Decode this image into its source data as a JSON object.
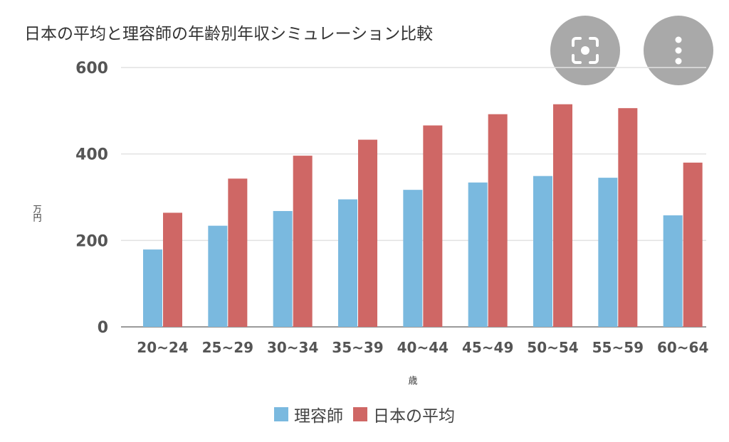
{
  "chart_data": {
    "type": "bar",
    "title": "日本の平均と理容師の年齢別年収シミュレーション比較",
    "xlabel": "歳",
    "ylabel": "万円",
    "ylim": [
      0,
      600
    ],
    "yticks": [
      0,
      200,
      400,
      600
    ],
    "categories": [
      "20~24",
      "25~29",
      "30~34",
      "35~39",
      "40~44",
      "45~49",
      "50~54",
      "55~59",
      "60~64"
    ],
    "series": [
      {
        "name": "理容師",
        "color": "#7ab9df",
        "values": [
          179,
          234,
          268,
          295,
          317,
          334,
          349,
          345,
          258
        ]
      },
      {
        "name": "日本の平均",
        "color": "#cf6765",
        "values": [
          264,
          343,
          396,
          433,
          466,
          492,
          515,
          506,
          380
        ]
      }
    ],
    "grid": true,
    "legend_position": "bottom"
  },
  "overlay": {
    "lens_icon": "lens-icon",
    "more_icon": "more-vertical-icon"
  }
}
